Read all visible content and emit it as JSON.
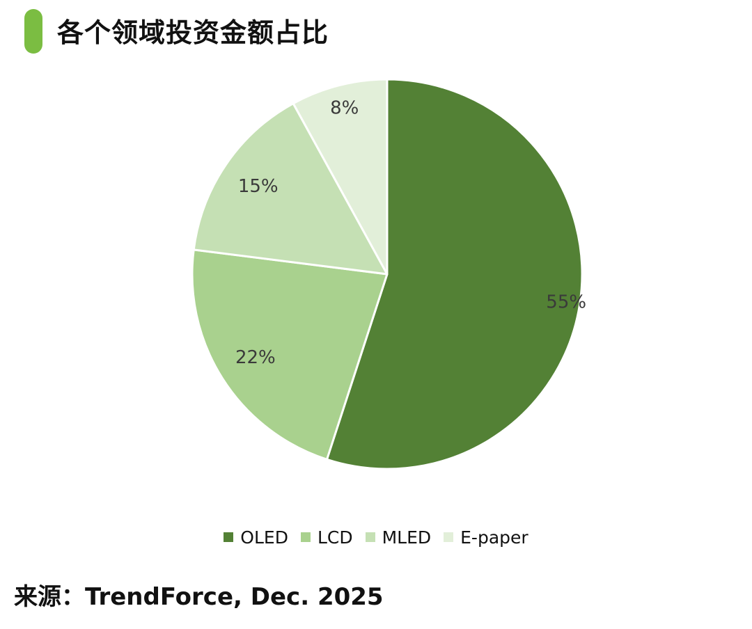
{
  "header": {
    "title": "各个领域投资金额占比",
    "accent_color": "#7bbd42"
  },
  "chart_data": {
    "type": "pie",
    "title": "各个领域投资金额占比",
    "slices": [
      {
        "label": "OLED",
        "value": 55,
        "display": "55%",
        "color": "#538135"
      },
      {
        "label": "LCD",
        "value": 22,
        "display": "22%",
        "color": "#a9d18e"
      },
      {
        "label": "MLED",
        "value": 15,
        "display": "15%",
        "color": "#c5e0b4"
      },
      {
        "label": "E-paper",
        "value": 8,
        "display": "8%",
        "color": "#e2efd9"
      }
    ],
    "start_angle": "12 o'clock",
    "direction": "clockwise",
    "legend_position": "bottom"
  },
  "footer": {
    "source": "来源：TrendForce, Dec. 2025"
  }
}
